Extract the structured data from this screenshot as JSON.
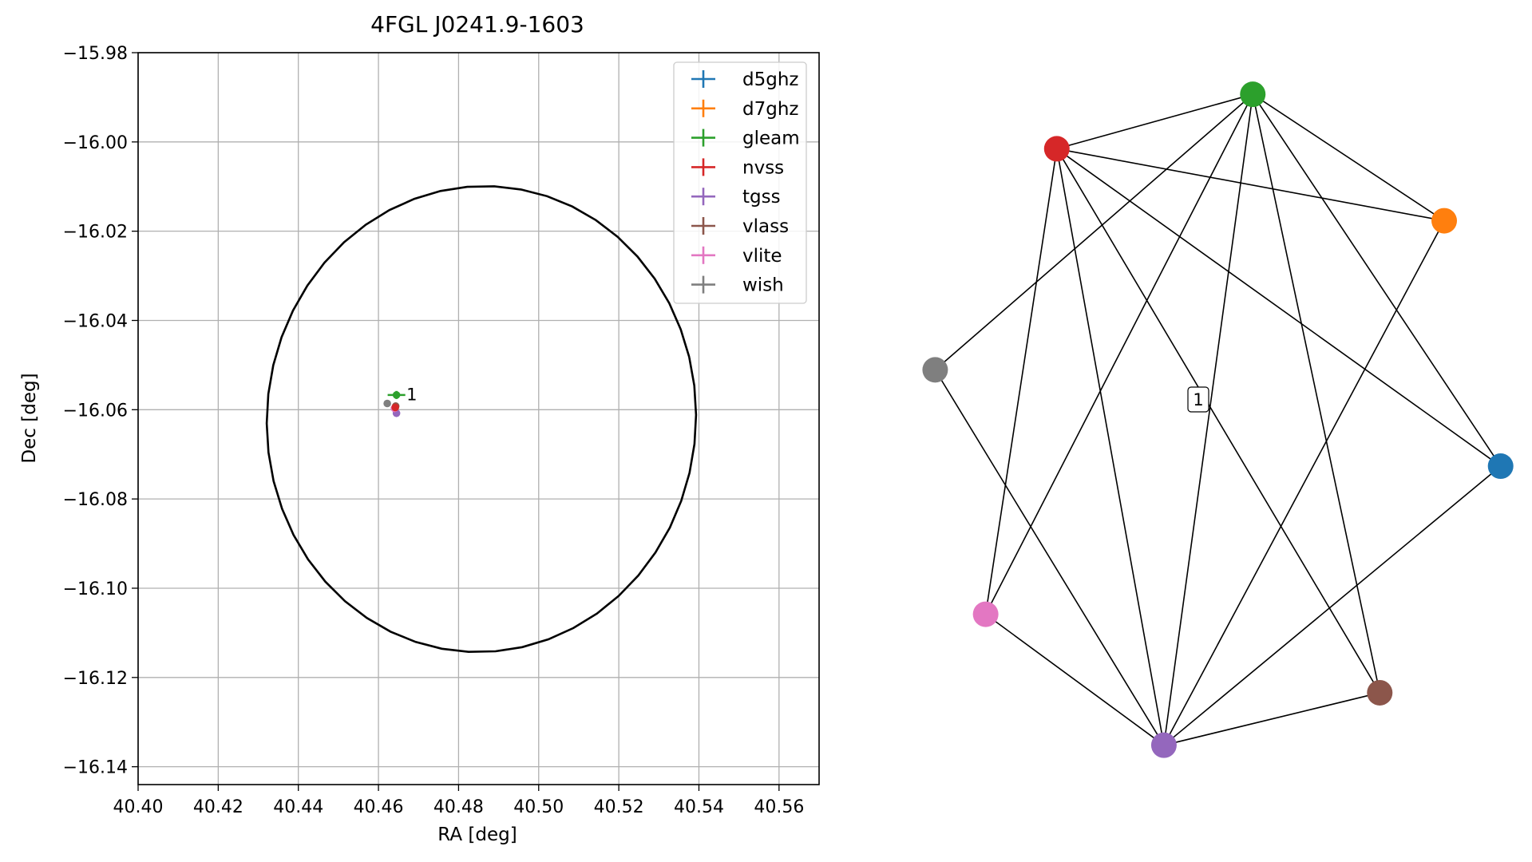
{
  "chart_data": [
    {
      "type": "scatter",
      "title": "4FGL J0241.9-1603",
      "xlabel": "RA [deg]",
      "ylabel": "Dec [deg]",
      "xlim": [
        40.4,
        40.57
      ],
      "ylim": [
        -16.144,
        -15.98
      ],
      "xticks": [
        40.4,
        40.42,
        40.44,
        40.46,
        40.48,
        40.5,
        40.52,
        40.54,
        40.56
      ],
      "xtick_labels": [
        "40.40",
        "40.42",
        "40.44",
        "40.46",
        "40.48",
        "40.50",
        "40.52",
        "40.54",
        "40.56"
      ],
      "yticks": [
        -15.98,
        -16.0,
        -16.02,
        -16.04,
        -16.06,
        -16.08,
        -16.1,
        -16.12,
        -16.14
      ],
      "ytick_labels": [
        "−15.98",
        "−16.00",
        "−16.02",
        "−16.04",
        "−16.06",
        "−16.08",
        "−16.10",
        "−16.12",
        "−16.14"
      ],
      "grid": true,
      "legend_position": "top-right",
      "ellipse": {
        "center": [
          40.4857,
          -16.0621
        ],
        "semi_axes": [
          0.0537,
          0.0521
        ],
        "angle_deg": 15
      },
      "series": [
        {
          "name": "d5ghz",
          "color": "#1f77b4",
          "points": []
        },
        {
          "name": "d7ghz",
          "color": "#ff7f0e",
          "points": []
        },
        {
          "name": "gleam",
          "color": "#2ca02c",
          "points": [
            {
              "x": 40.4645,
              "y": -16.0567,
              "xerr": 0.0022,
              "yerr": 0.0009
            }
          ]
        },
        {
          "name": "nvss",
          "color": "#d62728",
          "points": [
            {
              "x": 40.4642,
              "y": -16.0595
            }
          ]
        },
        {
          "name": "tgss",
          "color": "#9467bd",
          "points": [
            {
              "x": 40.4645,
              "y": -16.0608
            }
          ]
        },
        {
          "name": "vlass",
          "color": "#8c564b",
          "points": [
            {
              "x": 40.4643,
              "y": -16.0592
            }
          ]
        },
        {
          "name": "vlite",
          "color": "#e377c2",
          "points": [
            {
              "x": 40.464,
              "y": -16.0597
            }
          ]
        },
        {
          "name": "wish",
          "color": "#7f7f7f",
          "points": [
            {
              "x": 40.4622,
              "y": -16.0586
            }
          ]
        }
      ],
      "annotations": [
        {
          "text": "1",
          "x": 40.467,
          "y": -16.0565
        }
      ]
    },
    {
      "type": "network",
      "nodes": [
        {
          "id": "d5ghz",
          "color": "#1f77b4"
        },
        {
          "id": "d7ghz",
          "color": "#ff7f0e"
        },
        {
          "id": "gleam",
          "color": "#2ca02c"
        },
        {
          "id": "nvss",
          "color": "#d62728"
        },
        {
          "id": "tgss",
          "color": "#9467bd"
        },
        {
          "id": "vlass",
          "color": "#8c564b"
        },
        {
          "id": "vlite",
          "color": "#e377c2"
        },
        {
          "id": "wish",
          "color": "#7f7f7f"
        }
      ],
      "edges": [
        [
          "gleam",
          "nvss"
        ],
        [
          "gleam",
          "d7ghz"
        ],
        [
          "gleam",
          "d5ghz"
        ],
        [
          "gleam",
          "wish"
        ],
        [
          "gleam",
          "vlite"
        ],
        [
          "gleam",
          "tgss"
        ],
        [
          "gleam",
          "vlass"
        ],
        [
          "nvss",
          "d7ghz"
        ],
        [
          "nvss",
          "d5ghz"
        ],
        [
          "nvss",
          "vlite"
        ],
        [
          "nvss",
          "tgss"
        ],
        [
          "nvss",
          "vlass"
        ],
        [
          "d7ghz",
          "tgss"
        ],
        [
          "d5ghz",
          "tgss"
        ],
        [
          "wish",
          "tgss"
        ],
        [
          "vlite",
          "tgss"
        ],
        [
          "vlass",
          "tgss"
        ]
      ],
      "cluster_label": "1"
    }
  ]
}
